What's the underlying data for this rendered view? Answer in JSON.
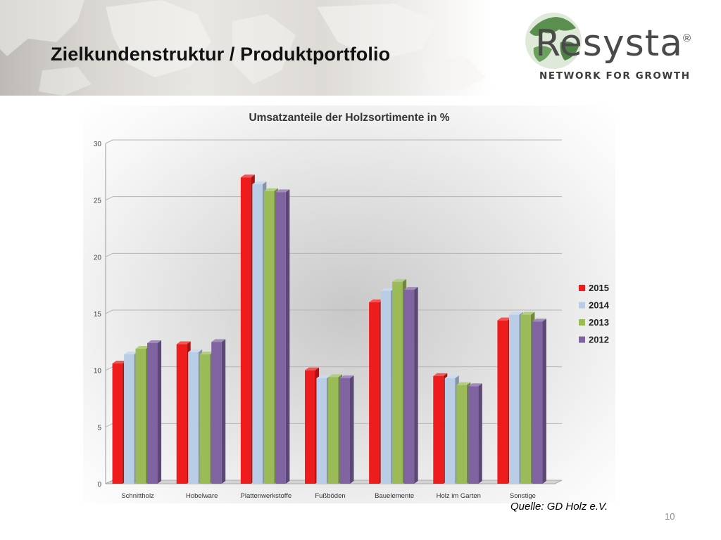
{
  "slide": {
    "title": "Zielkundenstruktur / Produktportfolio",
    "source": "Quelle: GD Holz e.V.",
    "page_number": "10"
  },
  "logo": {
    "wordmark": "Resysta",
    "registered": "®",
    "tagline": "NETWORK FOR GROWTH",
    "colors": {
      "globe": "#5a8f4f",
      "text": "#4a4a4a"
    }
  },
  "chart_data": {
    "type": "bar",
    "title": "Umsatzanteile der Holzsortimente in %",
    "xlabel": "",
    "ylabel": "",
    "ylim": [
      0,
      30
    ],
    "yticks": [
      0,
      5,
      10,
      15,
      20,
      25,
      30
    ],
    "grid": true,
    "legend_position": "right",
    "categories": [
      "Schnittholz",
      "Hobelware",
      "Plattenwerkstoffe",
      "Fußböden",
      "Bauelemente",
      "Holz im Garten",
      "Sonstige"
    ],
    "series": [
      {
        "name": "2015",
        "color": "#ee1c1c",
        "values": [
          10.6,
          12.3,
          27.0,
          10.0,
          16.0,
          9.5,
          14.4
        ]
      },
      {
        "name": "2014",
        "color": "#b9cde6",
        "values": [
          11.4,
          11.6,
          26.4,
          9.3,
          17.0,
          9.3,
          14.9
        ]
      },
      {
        "name": "2013",
        "color": "#9bbb59",
        "values": [
          11.9,
          11.4,
          25.8,
          9.4,
          17.8,
          8.7,
          14.9
        ]
      },
      {
        "name": "2012",
        "color": "#8064a2",
        "values": [
          12.4,
          12.5,
          25.7,
          9.3,
          17.1,
          8.6,
          14.3
        ]
      }
    ]
  }
}
